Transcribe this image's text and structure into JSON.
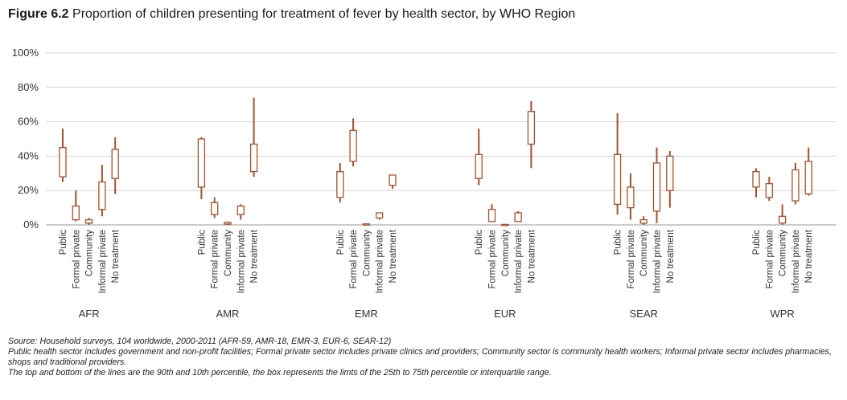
{
  "figure": {
    "number": "Figure 6.2",
    "title": "Proportion of children presenting for treatment of fever by health sector, by WHO Region"
  },
  "chart_data": {
    "type": "boxplot",
    "ylim": [
      0,
      100
    ],
    "yticks": [
      0,
      20,
      40,
      60,
      80,
      100
    ],
    "ytick_labels": [
      "0%",
      "20%",
      "40%",
      "60%",
      "80%",
      "100%"
    ],
    "grid": true,
    "sectors": [
      "Public",
      "Formal private",
      "Community",
      "Informal private",
      "No treatment"
    ],
    "colors": {
      "box": "#a0522d",
      "grid": "#d4d4d4",
      "axis": "#999999"
    },
    "regions": [
      {
        "name": "AFR",
        "boxes": [
          {
            "p10": 25,
            "q1": 28,
            "q3": 45,
            "p90": 56
          },
          {
            "p10": 2,
            "q1": 3,
            "q3": 11,
            "p90": 20
          },
          {
            "p10": 0,
            "q1": 1,
            "q3": 3,
            "p90": 4
          },
          {
            "p10": 5,
            "q1": 9,
            "q3": 25,
            "p90": 35
          },
          {
            "p10": 18,
            "q1": 27,
            "q3": 44,
            "p90": 51
          }
        ]
      },
      {
        "name": "AMR",
        "boxes": [
          {
            "p10": 15,
            "q1": 22,
            "q3": 50,
            "p90": 51
          },
          {
            "p10": 4,
            "q1": 6,
            "q3": 13,
            "p90": 16
          },
          {
            "p10": 0,
            "q1": 0.5,
            "q3": 1.5,
            "p90": 2
          },
          {
            "p10": 3,
            "q1": 6,
            "q3": 11,
            "p90": 12
          },
          {
            "p10": 28,
            "q1": 31,
            "q3": 47,
            "p90": 74
          }
        ]
      },
      {
        "name": "EMR",
        "boxes": [
          {
            "p10": 13,
            "q1": 16,
            "q3": 31,
            "p90": 36
          },
          {
            "p10": 34,
            "q1": 37,
            "q3": 55,
            "p90": 62
          },
          {
            "p10": 0,
            "q1": 0.2,
            "q3": 0.6,
            "p90": 0.8
          },
          {
            "p10": 3,
            "q1": 4,
            "q3": 7,
            "p90": 7
          },
          {
            "p10": 21,
            "q1": 23,
            "q3": 29,
            "p90": 29
          }
        ]
      },
      {
        "name": "EUR",
        "boxes": [
          {
            "p10": 23,
            "q1": 27,
            "q3": 41,
            "p90": 56
          },
          {
            "p10": 2,
            "q1": 2,
            "q3": 9,
            "p90": 12
          },
          {
            "p10": 0,
            "q1": 0.1,
            "q3": 0.3,
            "p90": 0.5
          },
          {
            "p10": 2,
            "q1": 2,
            "q3": 7,
            "p90": 8
          },
          {
            "p10": 33,
            "q1": 47,
            "q3": 66,
            "p90": 72
          }
        ]
      },
      {
        "name": "SEAR",
        "boxes": [
          {
            "p10": 6,
            "q1": 12,
            "q3": 41,
            "p90": 65
          },
          {
            "p10": 3,
            "q1": 10,
            "q3": 22,
            "p90": 30
          },
          {
            "p10": 0,
            "q1": 1,
            "q3": 3,
            "p90": 5
          },
          {
            "p10": 1,
            "q1": 8,
            "q3": 36,
            "p90": 45
          },
          {
            "p10": 10,
            "q1": 20,
            "q3": 40,
            "p90": 43
          }
        ]
      },
      {
        "name": "WPR",
        "boxes": [
          {
            "p10": 16,
            "q1": 22,
            "q3": 31,
            "p90": 33
          },
          {
            "p10": 14,
            "q1": 16,
            "q3": 24,
            "p90": 28
          },
          {
            "p10": 0,
            "q1": 1,
            "q3": 5,
            "p90": 12
          },
          {
            "p10": 12,
            "q1": 14,
            "q3": 32,
            "p90": 36
          },
          {
            "p10": 17,
            "q1": 18,
            "q3": 37,
            "p90": 45
          }
        ]
      }
    ]
  },
  "footnotes": {
    "source_label": "Source:",
    "source_text": " Household surveys, 104 worldwide, 2000-2011 (AFR-59, AMR-18, EMR-3, EUR-6, SEAR-12)",
    "note1": "Public health sector includes government and non-profit facilities; Formal private sector includes private clinics and providers; Community sector is community health workers; Informal private sector includes pharmacies, shops and traditional providers.",
    "note2": "The top and bottom of the lines are the 90th and 10th percentile, the box represents the limts of the 25th to 75th percentile or interquartile range."
  }
}
